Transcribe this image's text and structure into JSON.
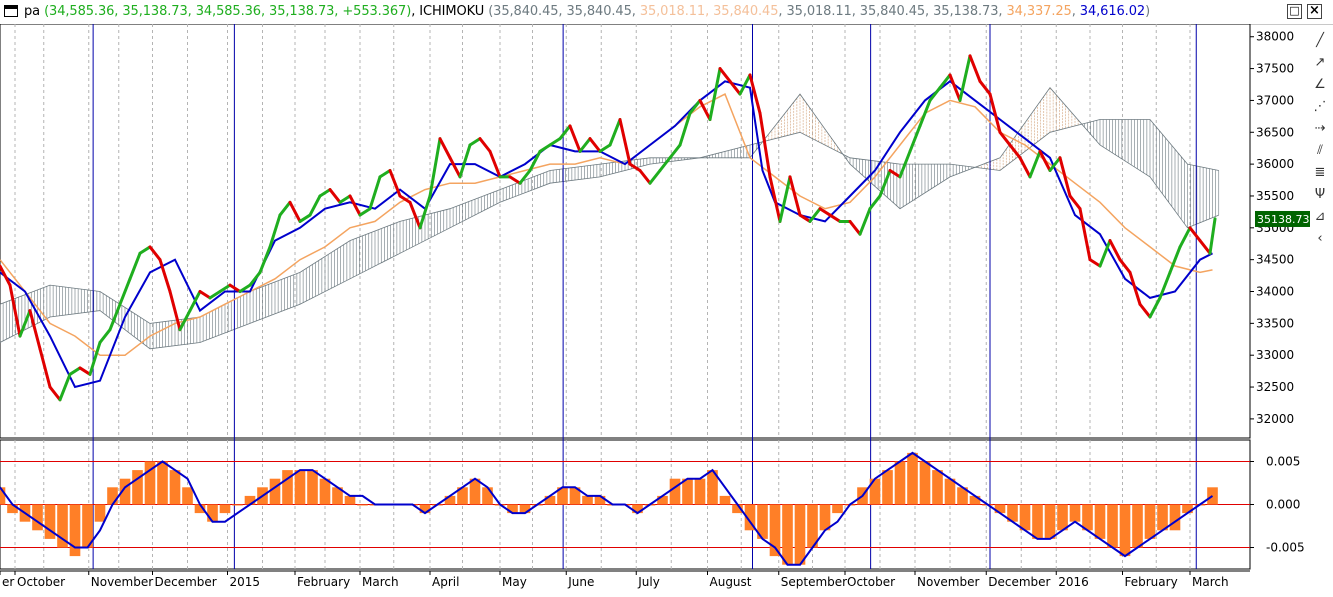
{
  "window": {
    "icon": "window-icon",
    "legend": {
      "series1_label": "pa",
      "series1_values": "(34,585.36, 35,138.73, 34,585.36, 35,138.73, +553.367)",
      "series2_label": "ICHIMOKU",
      "ichimoku_open": "(35,840.45, 35,840.45, ",
      "ichimoku_orange1": "35,018.11, 35,840.45",
      "ichimoku_mid": ", 35,018.11, 35,840.45, 35,138.73, ",
      "ichimoku_orange2": "34,337.25",
      "ichimoku_sep": ", ",
      "ichimoku_blue": "34,616.02",
      "ichimoku_close": ")"
    },
    "buttons": {
      "restore": "□",
      "close": "×"
    }
  },
  "colors": {
    "green": "#1fae1f",
    "red": "#e00000",
    "kijun": "#0000cc",
    "chikou": "#f4a460",
    "cloud_bear": "#6d7a80",
    "cloud_bull": "#d2a27a",
    "histogram": "#ff7f27",
    "ref_line": "#e00000",
    "grid": "#b4b4b4",
    "vline": "#0000aa",
    "last_price_bg": "#006400"
  },
  "toolbar_icons": [
    "line-tool-icon",
    "ray-tool-icon",
    "trend-angle-icon",
    "fan-tool-icon",
    "horizontal-ray-icon",
    "channel-icon",
    "fibonacci-icon",
    "pitchfork-icon",
    "gann-icon",
    "arc-tool-icon"
  ],
  "chart_data": [
    {
      "type": "line",
      "panel": "price",
      "y_ticks": [
        "38000",
        "37500",
        "37000",
        "36500",
        "36000",
        "35500",
        "35000",
        "34500",
        "34000",
        "33500",
        "33000",
        "32500",
        "32000"
      ],
      "ylim": [
        31700,
        38200
      ],
      "last_price_label": "35138.73",
      "x_range": [
        0,
        100
      ],
      "month_labels": [
        {
          "label": "er",
          "x": -0.2
        },
        {
          "label": "October",
          "x": 1.2
        },
        {
          "label": "November",
          "x": 7.1
        },
        {
          "label": "December",
          "x": 12.2
        },
        {
          "label": "2015",
          "x": 18.2
        },
        {
          "label": "February",
          "x": 23.6
        },
        {
          "label": "March",
          "x": 28.8
        },
        {
          "label": "April",
          "x": 34.4
        },
        {
          "label": "May",
          "x": 40.0
        },
        {
          "label": "June",
          "x": 45.3
        },
        {
          "label": "July",
          "x": 50.9
        },
        {
          "label": "August",
          "x": 56.6
        },
        {
          "label": "September",
          "x": 62.3
        },
        {
          "label": "October",
          "x": 67.6
        },
        {
          "label": "November",
          "x": 73.2
        },
        {
          "label": "December",
          "x": 78.9
        },
        {
          "label": "2016",
          "x": 84.5
        },
        {
          "label": "February",
          "x": 89.8
        },
        {
          "label": "March",
          "x": 95.2
        }
      ],
      "vertical_markers_x": [
        7.45,
        18.75,
        45.05,
        60.2,
        69.65,
        79.2,
        95.7
      ],
      "grid_x": [
        1.2,
        7.1,
        12.2,
        18.2,
        23.6,
        28.8,
        34.4,
        40.0,
        45.3,
        50.9,
        56.6,
        62.3,
        67.6,
        73.2,
        78.9,
        84.5,
        89.8,
        95.2,
        3.5,
        9.5,
        15.0,
        21.0,
        26.0,
        31.5,
        37.0,
        42.6,
        48.1,
        53.7,
        59.3,
        65.0,
        70.4,
        76.0,
        81.7,
        87.2,
        92.5
      ],
      "series": [
        {
          "name": "pa",
          "style": "green-up-red-down",
          "x": [
            0,
            0.8,
            1.6,
            2.4,
            3.2,
            4.0,
            4.8,
            5.6,
            6.4,
            7.2,
            8.0,
            8.8,
            9.6,
            10.4,
            11.2,
            12.0,
            12.8,
            13.6,
            14.4,
            15.2,
            16.0,
            16.8,
            17.6,
            18.4,
            19.2,
            20.0,
            20.8,
            21.6,
            22.4,
            23.2,
            24.0,
            24.8,
            25.6,
            26.4,
            27.2,
            28.0,
            28.8,
            29.6,
            30.4,
            31.2,
            32.0,
            32.8,
            33.6,
            34.4,
            35.2,
            36.0,
            36.8,
            37.6,
            38.4,
            39.2,
            40.0,
            40.8,
            41.6,
            42.4,
            43.2,
            44.0,
            44.8,
            45.6,
            46.4,
            47.2,
            48.0,
            48.8,
            49.6,
            50.4,
            51.2,
            52.0,
            52.8,
            53.6,
            54.4,
            55.2,
            56.0,
            56.8,
            57.6,
            58.4,
            59.2,
            60.0,
            60.8,
            61.6,
            62.4,
            63.2,
            64.0,
            64.8,
            65.6,
            66.4,
            67.2,
            68.0,
            68.8,
            69.6,
            70.4,
            71.2,
            72.0,
            72.8,
            73.6,
            74.4,
            75.2,
            76.0,
            76.8,
            77.6,
            78.4,
            79.2,
            80.0,
            80.8,
            81.6,
            82.4,
            83.2,
            84.0,
            84.8,
            85.6,
            86.4,
            87.2,
            88.0,
            88.8,
            89.6,
            90.4,
            91.2,
            92.0,
            92.8,
            93.6,
            94.4,
            95.2,
            96.0,
            96.8,
            97.2
          ],
          "values": [
            34400,
            34100,
            33300,
            33700,
            33100,
            32500,
            32300,
            32700,
            32800,
            32700,
            33200,
            33400,
            33800,
            34200,
            34600,
            34700,
            34500,
            34000,
            33400,
            33700,
            34000,
            33900,
            34000,
            34100,
            34000,
            34100,
            34300,
            34700,
            35200,
            35400,
            35100,
            35200,
            35500,
            35600,
            35400,
            35500,
            35200,
            35300,
            35800,
            35900,
            35500,
            35400,
            35000,
            35500,
            36400,
            36100,
            35800,
            36300,
            36400,
            36200,
            35800,
            35800,
            35700,
            35900,
            36200,
            36300,
            36400,
            36600,
            36200,
            36400,
            36200,
            36300,
            36700,
            36000,
            35900,
            35700,
            35900,
            36100,
            36300,
            36800,
            37000,
            36700,
            37500,
            37300,
            37100,
            37400,
            36800,
            35800,
            35100,
            35800,
            35200,
            35100,
            35300,
            35200,
            35100,
            35100,
            34900,
            35300,
            35500,
            35900,
            35800,
            36200,
            36600,
            37000,
            37200,
            37400,
            37000,
            37700,
            37300,
            37100,
            36500,
            36300,
            36100,
            35800,
            36200,
            35900,
            36100,
            35500,
            35300,
            34500,
            34400,
            34800,
            34500,
            34300,
            33800,
            33600,
            33900,
            34300,
            34700,
            35000,
            34800,
            34600,
            35140
          ]
        },
        {
          "name": "kijun",
          "x": [
            0,
            2,
            4,
            6,
            8,
            10,
            12,
            14,
            16,
            18,
            20,
            22,
            24,
            26,
            28,
            30,
            32,
            34,
            36,
            38,
            40,
            42,
            44,
            46,
            48,
            50,
            52,
            54,
            56,
            58,
            60,
            61,
            62,
            64,
            66,
            68,
            70,
            72,
            74,
            76,
            78,
            80,
            82,
            84,
            86,
            88,
            90,
            92,
            94,
            96,
            97
          ],
          "values": [
            34300,
            34000,
            33300,
            32500,
            32600,
            33600,
            34300,
            34500,
            33700,
            34000,
            34000,
            34800,
            35000,
            35300,
            35400,
            35300,
            35600,
            35300,
            36000,
            36000,
            35800,
            36000,
            36300,
            36200,
            36200,
            36000,
            36300,
            36600,
            37000,
            37300,
            37200,
            35900,
            35400,
            35200,
            35100,
            35500,
            35900,
            36500,
            37000,
            37300,
            37000,
            36700,
            36400,
            36100,
            35200,
            34900,
            34200,
            33900,
            34000,
            34500,
            34600
          ]
        },
        {
          "name": "chikou",
          "x": [
            0,
            2,
            4,
            6,
            8,
            10,
            12,
            14,
            16,
            18,
            20,
            22,
            24,
            26,
            28,
            30,
            32,
            34,
            36,
            38,
            40,
            42,
            44,
            46,
            48,
            50,
            52,
            54,
            56,
            58,
            60,
            62,
            64,
            66,
            68,
            70,
            72,
            74,
            76,
            78,
            80,
            82,
            84,
            86,
            88,
            90,
            92,
            94,
            96,
            97
          ],
          "values": [
            34500,
            34000,
            33500,
            33300,
            33000,
            33000,
            33300,
            33500,
            33600,
            33800,
            34000,
            34200,
            34500,
            34700,
            35000,
            35100,
            35400,
            35600,
            35700,
            35700,
            35800,
            35900,
            36000,
            36000,
            36100,
            36000,
            36300,
            36600,
            36900,
            37100,
            36100,
            35800,
            35500,
            35300,
            35400,
            35800,
            36300,
            36800,
            37000,
            36900,
            36500,
            36300,
            36000,
            35700,
            35400,
            35000,
            34700,
            34400,
            34300,
            34340
          ]
        },
        {
          "name": "senkou_a",
          "x": [
            0,
            4,
            8,
            12,
            16,
            20,
            24,
            28,
            32,
            36,
            40,
            44,
            48,
            52,
            56,
            60,
            64,
            68,
            72,
            76,
            80,
            84,
            88,
            92,
            95,
            97.5
          ],
          "values": [
            33800,
            34100,
            34000,
            33500,
            33600,
            34000,
            34300,
            34800,
            35100,
            35300,
            35600,
            35900,
            36000,
            36100,
            36100,
            36300,
            36500,
            36100,
            36000,
            36000,
            35900,
            36500,
            36700,
            36700,
            36000,
            35900
          ]
        },
        {
          "name": "senkou_b",
          "x": [
            0,
            4,
            8,
            12,
            16,
            20,
            24,
            28,
            32,
            36,
            40,
            44,
            48,
            52,
            56,
            60,
            64,
            68,
            72,
            76,
            80,
            84,
            88,
            92,
            95,
            97.5
          ],
          "values": [
            33200,
            33600,
            33700,
            33100,
            33200,
            33500,
            33800,
            34200,
            34600,
            35000,
            35400,
            35700,
            35800,
            36000,
            36100,
            36100,
            37100,
            36000,
            35300,
            35800,
            36100,
            37200,
            36300,
            35800,
            35000,
            35200
          ]
        }
      ]
    },
    {
      "type": "bar",
      "panel": "oscillator",
      "y_ticks": [
        "0.005",
        "0.000",
        "-0.005"
      ],
      "ylim": [
        -0.0075,
        0.0075
      ],
      "ref_lines": [
        0.005,
        -0.005
      ],
      "x": [
        0,
        1,
        2,
        3,
        4,
        5,
        6,
        7,
        8,
        9,
        10,
        11,
        12,
        13,
        14,
        15,
        16,
        17,
        18,
        19,
        20,
        21,
        22,
        23,
        24,
        25,
        26,
        27,
        28,
        29,
        30,
        31,
        32,
        33,
        34,
        35,
        36,
        37,
        38,
        39,
        40,
        41,
        42,
        43,
        44,
        45,
        46,
        47,
        48,
        49,
        50,
        51,
        52,
        53,
        54,
        55,
        56,
        57,
        58,
        59,
        60,
        61,
        62,
        63,
        64,
        65,
        66,
        67,
        68,
        69,
        70,
        71,
        72,
        73,
        74,
        75,
        76,
        77,
        78,
        79,
        80,
        81,
        82,
        83,
        84,
        85,
        86,
        87,
        88,
        89,
        90,
        91,
        92,
        93,
        94,
        95,
        96,
        97
      ],
      "values": [
        0.002,
        -0.001,
        -0.002,
        -0.003,
        -0.004,
        -0.005,
        -0.006,
        -0.005,
        -0.002,
        0.002,
        0.003,
        0.004,
        0.005,
        0.005,
        0.004,
        0.002,
        -0.001,
        -0.002,
        -0.001,
        0.0,
        0.001,
        0.002,
        0.003,
        0.004,
        0.004,
        0.004,
        0.003,
        0.002,
        0.001,
        0.0,
        0.0,
        0.0,
        0.0,
        0.0,
        -0.001,
        0.0,
        0.001,
        0.002,
        0.003,
        0.002,
        0.0,
        -0.001,
        -0.001,
        0.0,
        0.001,
        0.002,
        0.002,
        0.001,
        0.001,
        0.0,
        0.0,
        -0.001,
        0.0,
        0.001,
        0.003,
        0.003,
        0.003,
        0.004,
        0.001,
        -0.001,
        -0.003,
        -0.004,
        -0.006,
        -0.007,
        -0.007,
        -0.005,
        -0.003,
        -0.001,
        0.0,
        0.002,
        0.003,
        0.004,
        0.005,
        0.006,
        0.005,
        0.004,
        0.003,
        0.002,
        0.001,
        0.0,
        -0.001,
        -0.002,
        -0.003,
        -0.004,
        -0.004,
        -0.003,
        -0.002,
        -0.003,
        -0.004,
        -0.005,
        -0.006,
        -0.005,
        -0.004,
        -0.003,
        -0.003,
        -0.001,
        0.0,
        0.002
      ],
      "smooth_values": [
        0.002,
        0.0,
        -0.001,
        -0.002,
        -0.003,
        -0.004,
        -0.005,
        -0.005,
        -0.003,
        0.0,
        0.002,
        0.003,
        0.004,
        0.005,
        0.004,
        0.003,
        0.0,
        -0.002,
        -0.002,
        -0.001,
        0.0,
        0.001,
        0.002,
        0.003,
        0.004,
        0.004,
        0.003,
        0.002,
        0.001,
        0.001,
        0.0,
        0.0,
        0.0,
        0.0,
        -0.001,
        0.0,
        0.001,
        0.002,
        0.003,
        0.002,
        0.0,
        -0.001,
        -0.001,
        0.0,
        0.001,
        0.002,
        0.002,
        0.001,
        0.001,
        0.0,
        0.0,
        -0.001,
        0.0,
        0.001,
        0.002,
        0.003,
        0.003,
        0.004,
        0.002,
        0.0,
        -0.002,
        -0.004,
        -0.005,
        -0.007,
        -0.007,
        -0.005,
        -0.003,
        -0.002,
        0.0,
        0.001,
        0.003,
        0.004,
        0.005,
        0.006,
        0.005,
        0.004,
        0.003,
        0.002,
        0.001,
        0.0,
        -0.001,
        -0.002,
        -0.003,
        -0.004,
        -0.004,
        -0.003,
        -0.002,
        -0.003,
        -0.004,
        -0.005,
        -0.006,
        -0.005,
        -0.004,
        -0.003,
        -0.002,
        -0.001,
        0.0,
        0.001
      ]
    }
  ]
}
